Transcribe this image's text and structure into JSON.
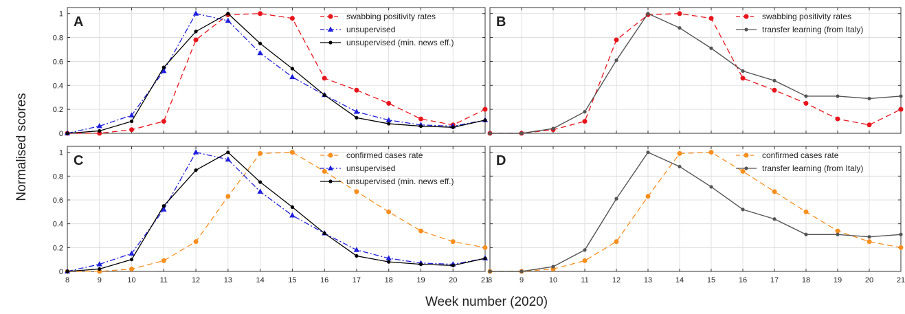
{
  "figure": {
    "xlabel": "Week number (2020)",
    "ylabel": "Normalised scores"
  },
  "colors": {
    "swabbing": "#e8141c",
    "confirmed": "#f78f1e",
    "unsupervised": "#1f1fdb",
    "min_news": "#000000",
    "transfer": "#555555",
    "grid": "#d9d9d9"
  },
  "chart_data": [
    {
      "type": "line",
      "panel": "A",
      "x": [
        8,
        9,
        10,
        11,
        12,
        13,
        14,
        15,
        16,
        17,
        18,
        19,
        20,
        21
      ],
      "xticks": [
        "8",
        "9",
        "10",
        "11",
        "12",
        "13",
        "14",
        "15",
        "16",
        "17",
        "18",
        "19",
        "20",
        "21"
      ],
      "yticks": [
        "0",
        "0.2",
        "0.4",
        "0.6",
        "0.8",
        "1"
      ],
      "xlim": [
        8,
        21
      ],
      "ylim": [
        0,
        1.05
      ],
      "grid": true,
      "legend_position": "top-right",
      "series": [
        {
          "name": "swabbing positivity rates",
          "color_key": "swabbing",
          "marker": "circle",
          "dash": "dashed",
          "values": [
            0.0,
            0.0,
            0.03,
            0.1,
            0.78,
            0.99,
            1.0,
            0.96,
            0.46,
            0.36,
            0.25,
            0.12,
            0.07,
            0.2
          ]
        },
        {
          "name": "unsupervised",
          "color_key": "unsupervised",
          "marker": "triangle",
          "dash": "dashdot",
          "values": [
            0.0,
            0.06,
            0.15,
            0.52,
            1.0,
            0.94,
            0.67,
            0.47,
            0.32,
            0.18,
            0.11,
            0.07,
            0.06,
            0.11
          ]
        },
        {
          "name": "unsupervised (min. news eff.)",
          "color_key": "min_news",
          "marker": "dot",
          "dash": "solid",
          "values": [
            0.0,
            0.02,
            0.1,
            0.55,
            0.85,
            1.0,
            0.75,
            0.54,
            0.32,
            0.13,
            0.08,
            0.06,
            0.05,
            0.11
          ]
        }
      ]
    },
    {
      "type": "line",
      "panel": "B",
      "x": [
        8,
        9,
        10,
        11,
        12,
        13,
        14,
        15,
        16,
        17,
        18,
        19,
        20,
        21
      ],
      "xticks": [
        "8",
        "9",
        "10",
        "11",
        "12",
        "13",
        "14",
        "15",
        "16",
        "17",
        "18",
        "19",
        "20",
        "21"
      ],
      "yticks": [
        "0",
        "0.2",
        "0.4",
        "0.6",
        "0.8",
        "1"
      ],
      "xlim": [
        8,
        21
      ],
      "ylim": [
        0,
        1.05
      ],
      "grid": true,
      "legend_position": "top-right",
      "series": [
        {
          "name": "swabbing positivity rates",
          "color_key": "swabbing",
          "marker": "circle",
          "dash": "dashed",
          "values": [
            0.0,
            0.0,
            0.03,
            0.1,
            0.78,
            0.99,
            1.0,
            0.96,
            0.46,
            0.36,
            0.25,
            0.12,
            0.07,
            0.2
          ]
        },
        {
          "name": "transfer learning (from Italy)",
          "color_key": "transfer",
          "marker": "dot",
          "dash": "solid",
          "values": [
            0.0,
            0.0,
            0.04,
            0.18,
            0.61,
            1.0,
            0.88,
            0.71,
            0.52,
            0.44,
            0.31,
            0.31,
            0.29,
            0.31
          ]
        }
      ]
    },
    {
      "type": "line",
      "panel": "C",
      "x": [
        8,
        9,
        10,
        11,
        12,
        13,
        14,
        15,
        16,
        17,
        18,
        19,
        20,
        21
      ],
      "xticks": [
        "8",
        "9",
        "10",
        "11",
        "12",
        "13",
        "14",
        "15",
        "16",
        "17",
        "18",
        "19",
        "20",
        "21"
      ],
      "yticks": [
        "0",
        "0.2",
        "0.4",
        "0.6",
        "0.8",
        "1"
      ],
      "xlim": [
        8,
        21
      ],
      "ylim": [
        0,
        1.05
      ],
      "grid": true,
      "legend_position": "top-right",
      "series": [
        {
          "name": "confirmed cases rate",
          "color_key": "confirmed",
          "marker": "circle",
          "dash": "dashed",
          "values": [
            0.0,
            0.0,
            0.02,
            0.09,
            0.25,
            0.63,
            0.99,
            1.0,
            0.84,
            0.67,
            0.5,
            0.34,
            0.25,
            0.2
          ]
        },
        {
          "name": "unsupervised",
          "color_key": "unsupervised",
          "marker": "triangle",
          "dash": "dashdot",
          "values": [
            0.0,
            0.06,
            0.15,
            0.52,
            1.0,
            0.94,
            0.67,
            0.47,
            0.32,
            0.18,
            0.11,
            0.07,
            0.06,
            0.11
          ]
        },
        {
          "name": "unsupervised (min. news eff.)",
          "color_key": "min_news",
          "marker": "dot",
          "dash": "solid",
          "values": [
            0.0,
            0.02,
            0.1,
            0.55,
            0.85,
            1.0,
            0.75,
            0.54,
            0.32,
            0.13,
            0.08,
            0.06,
            0.05,
            0.11
          ]
        }
      ]
    },
    {
      "type": "line",
      "panel": "D",
      "x": [
        8,
        9,
        10,
        11,
        12,
        13,
        14,
        15,
        16,
        17,
        18,
        19,
        20,
        21
      ],
      "xticks": [
        "8",
        "9",
        "10",
        "11",
        "12",
        "13",
        "14",
        "15",
        "16",
        "17",
        "18",
        "19",
        "20",
        "21"
      ],
      "yticks": [
        "0",
        "0.2",
        "0.4",
        "0.6",
        "0.8",
        "1"
      ],
      "xlim": [
        8,
        21
      ],
      "ylim": [
        0,
        1.05
      ],
      "grid": true,
      "legend_position": "top-right",
      "series": [
        {
          "name": "confirmed cases rate",
          "color_key": "confirmed",
          "marker": "circle",
          "dash": "dashed",
          "values": [
            0.0,
            0.0,
            0.02,
            0.09,
            0.25,
            0.63,
            0.99,
            1.0,
            0.84,
            0.67,
            0.5,
            0.34,
            0.25,
            0.2
          ]
        },
        {
          "name": "transfer learning (from Italy)",
          "color_key": "transfer",
          "marker": "dot",
          "dash": "solid",
          "values": [
            0.0,
            0.0,
            0.04,
            0.18,
            0.61,
            1.0,
            0.88,
            0.71,
            0.52,
            0.44,
            0.31,
            0.31,
            0.29,
            0.31
          ]
        }
      ]
    }
  ]
}
